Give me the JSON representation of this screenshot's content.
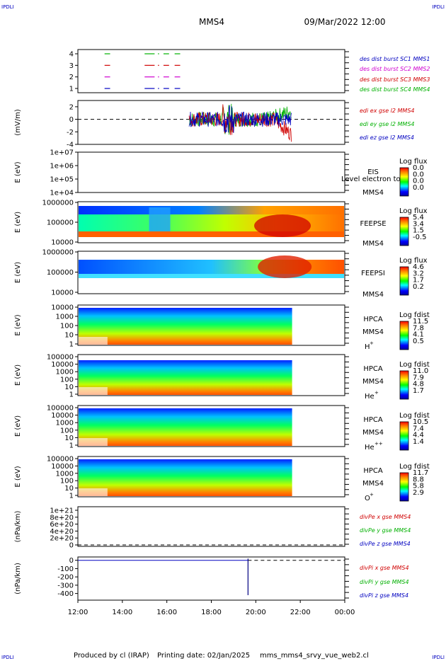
{
  "header": {
    "corner_left_top": "IPDLI",
    "corner_right_top": "IPDLI",
    "spacecraft": "MMS4",
    "datetime": "09/Mar/2022 12:00",
    "corner_left_bottom": "IPDLI",
    "corner_right_bottom": "IPDLI"
  },
  "footer": {
    "produced_by": "Produced by cl (IRAP)",
    "printing_date": "Printing date: 02/Jan/2025",
    "filename": "mms_mms4_srvy_vue_web2.cl"
  },
  "colors": {
    "red": "#d00000",
    "green": "#00b000",
    "blue": "#0000c0",
    "magenta": "#d000d0",
    "black": "#000000"
  },
  "chart_data": [
    {
      "id": "burst",
      "type": "line",
      "xlim": [
        "12:00",
        "00:00"
      ],
      "ylim": [
        0.5,
        4.5
      ],
      "yticks": [
        "4",
        "3",
        "2",
        "1"
      ],
      "ylabel": "",
      "legend": [
        {
          "text": "des dist burst SC1 MMS1",
          "color": "#0000c0"
        },
        {
          "text": "des dist burst SC2 MMS2",
          "color": "#d000d0"
        },
        {
          "text": "des dist burst SC3 MMS3",
          "color": "#d00000"
        },
        {
          "text": "des dist burst SC4 MMS4",
          "color": "#00b000"
        }
      ],
      "segments": [
        {
          "level": 4,
          "color": "#00b000",
          "x": [
            [
              13.2,
              13.45
            ],
            [
              15.0,
              15.45
            ],
            [
              15.6,
              15.65
            ],
            [
              15.85,
              16.1
            ],
            [
              16.35,
              16.6
            ]
          ]
        },
        {
          "level": 3,
          "color": "#d00000",
          "x": [
            [
              13.2,
              13.45
            ],
            [
              15.0,
              15.45
            ],
            [
              15.6,
              15.65
            ],
            [
              15.85,
              16.1
            ],
            [
              16.35,
              16.6
            ]
          ]
        },
        {
          "level": 2,
          "color": "#d000d0",
          "x": [
            [
              13.2,
              13.45
            ],
            [
              15.0,
              15.45
            ],
            [
              15.6,
              15.65
            ],
            [
              15.85,
              16.1
            ],
            [
              16.35,
              16.6
            ]
          ]
        },
        {
          "level": 1,
          "color": "#0000c0",
          "x": [
            [
              13.2,
              13.45
            ],
            [
              15.0,
              15.45
            ],
            [
              15.6,
              15.65
            ],
            [
              15.85,
              16.1
            ],
            [
              16.35,
              16.6
            ]
          ]
        }
      ]
    },
    {
      "id": "edi",
      "type": "line",
      "ylabel": "(mV/m)",
      "ylim": [
        -4,
        3
      ],
      "yticks": [
        "2",
        "0",
        "-2",
        "-4"
      ],
      "legend": [
        {
          "text": "edi ex gse l2 MMS4",
          "color": "#d00000"
        },
        {
          "text": "edi ey gse l2 MMS4",
          "color": "#00b000"
        },
        {
          "text": "edi ez gse l2 MMS4",
          "color": "#0000c0"
        }
      ],
      "data_range_hours": [
        17.0,
        21.6
      ]
    },
    {
      "id": "eis",
      "type": "heatmap",
      "ylabel": "E (eV)",
      "yticks": [
        "1e+07",
        "1e+06",
        "1e+05",
        "1e+04"
      ],
      "instrument": "EIS",
      "sc": "MMS4",
      "overlay_text": "Level electron to",
      "colorbar_title": "Log flux",
      "colorbar_ticks": [
        "0.0",
        "0.0",
        "0.0",
        "0.0"
      ]
    },
    {
      "id": "feepse",
      "type": "heatmap",
      "ylabel": "E (eV)",
      "yticks": [
        "1000000",
        "100000",
        "10000"
      ],
      "instrument": "FEEPSE",
      "sc": "MMS4",
      "colorbar_title": "Log flux",
      "colorbar_ticks": [
        "5.4",
        "3.4",
        "1.5",
        "-0.5"
      ]
    },
    {
      "id": "feepsi",
      "type": "heatmap",
      "ylabel": "E (eV)",
      "yticks": [
        "1000000",
        "100000",
        "10000"
      ],
      "instrument": "FEEPSI",
      "sc": "MMS4",
      "colorbar_title": "Log flux",
      "colorbar_ticks": [
        "4.6",
        "3.2",
        "1.7",
        "0.2"
      ]
    },
    {
      "id": "hpca_h",
      "type": "heatmap",
      "ylabel": "E (eV)",
      "yticks": [
        "10000",
        "1000",
        "100",
        "10",
        "1"
      ],
      "instrument": "HPCA",
      "sc": "MMS4",
      "species": "H",
      "charge": "+",
      "colorbar_title": "Log fdist",
      "colorbar_ticks": [
        "11.5",
        "7.8",
        "4.1",
        "0.5"
      ]
    },
    {
      "id": "hpca_he",
      "type": "heatmap",
      "ylabel": "E (eV)",
      "yticks": [
        "100000",
        "10000",
        "1000",
        "100",
        "10",
        "1"
      ],
      "instrument": "HPCA",
      "sc": "MMS4",
      "species": "He",
      "charge": "+",
      "colorbar_title": "Log fdist",
      "colorbar_ticks": [
        "11.0",
        "7.9",
        "4.8",
        "1.7"
      ]
    },
    {
      "id": "hpca_hepp",
      "type": "heatmap",
      "ylabel": "E (eV)",
      "yticks": [
        "100000",
        "10000",
        "1000",
        "100",
        "10",
        "1"
      ],
      "instrument": "HPCA",
      "sc": "MMS4",
      "species": "He",
      "charge": "++",
      "colorbar_title": "Log fdist",
      "colorbar_ticks": [
        "10.5",
        "7.4",
        "4.4",
        "1.4"
      ]
    },
    {
      "id": "hpca_o",
      "type": "heatmap",
      "ylabel": "E (eV)",
      "yticks": [
        "100000",
        "10000",
        "1000",
        "100",
        "10",
        "1"
      ],
      "instrument": "HPCA",
      "sc": "MMS4",
      "species": "O",
      "charge": "+",
      "colorbar_title": "Log fdist",
      "colorbar_ticks": [
        "11.7",
        "8.8",
        "5.8",
        "2.9"
      ]
    },
    {
      "id": "divpe",
      "type": "line",
      "ylabel": "(nPa/km)",
      "yticks": [
        "1e+21",
        "8e+20",
        "6e+20",
        "4e+20",
        "2e+20",
        "0"
      ],
      "ylim": [
        0,
        1e+21
      ],
      "legend": [
        {
          "text": "divPe x gse MMS4",
          "color": "#d00000"
        },
        {
          "text": "divPe y gse MMS4",
          "color": "#00b000"
        },
        {
          "text": "divPe z gse MMS4",
          "color": "#0000c0"
        }
      ]
    },
    {
      "id": "divpi",
      "type": "line",
      "ylabel": "(nPa/km)",
      "yticks": [
        "0",
        "-100",
        "-200",
        "-300",
        "-400"
      ],
      "ylim": [
        -480,
        40
      ],
      "legend": [
        {
          "text": "divPi x gse MMS4",
          "color": "#d00000"
        },
        {
          "text": "divPi y gse MMS4",
          "color": "#00b000"
        },
        {
          "text": "divPi z gse MMS4",
          "color": "#0000c0"
        }
      ],
      "spike": {
        "x": 19.65,
        "y": -420
      },
      "flat_until": 19.65,
      "xticks": [
        "12:00",
        "14:00",
        "16:00",
        "18:00",
        "20:00",
        "22:00",
        "00:00"
      ]
    }
  ]
}
